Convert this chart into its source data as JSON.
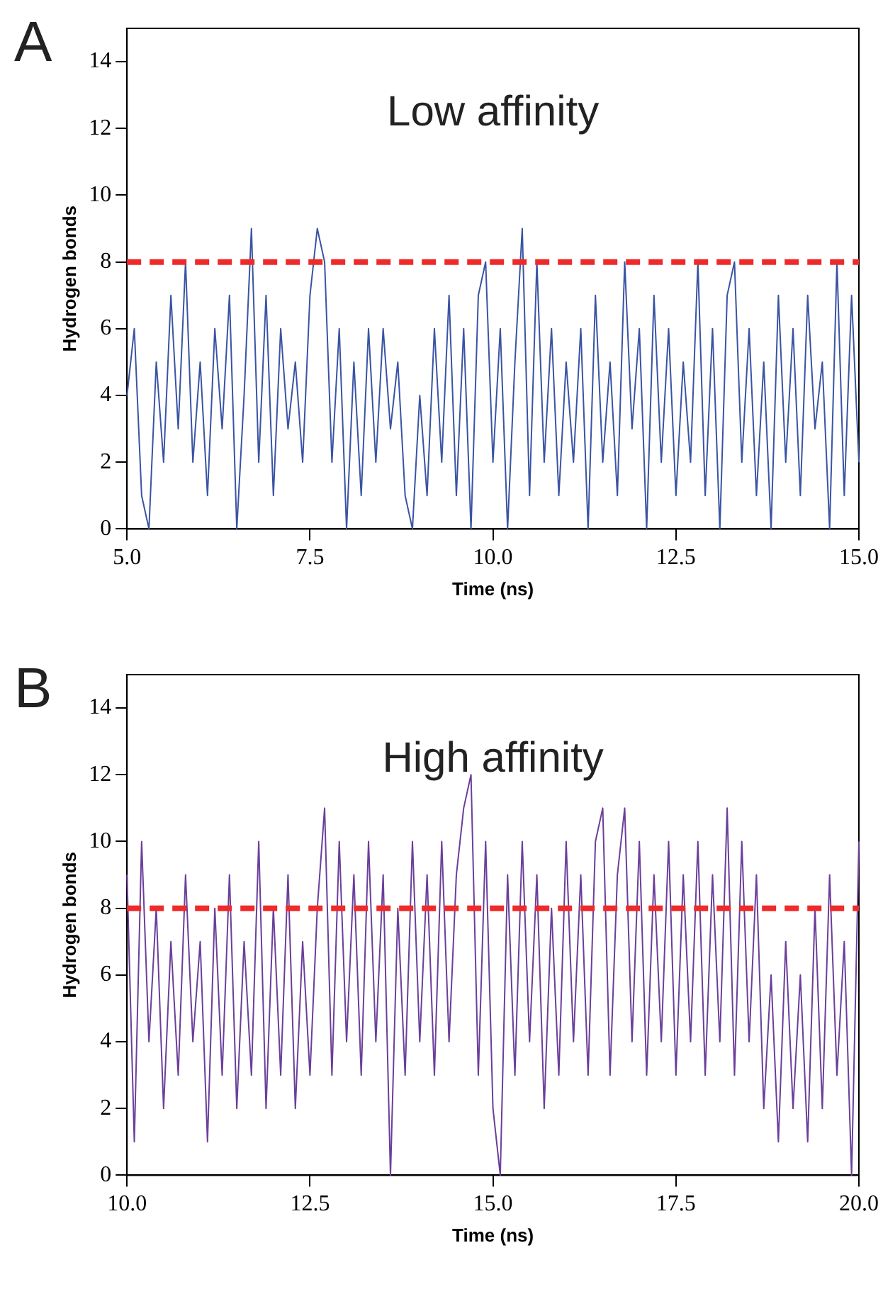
{
  "chart_data": [
    {
      "type": "line",
      "title": "Low affinity",
      "xlabel": "Time (ns)",
      "ylabel": "Hydrogen bonds",
      "annotations": [
        "A"
      ],
      "x": [
        5.0,
        5.1,
        5.2,
        5.3,
        5.4,
        5.5,
        5.6,
        5.7,
        5.8,
        5.9,
        6.0,
        6.1,
        6.2,
        6.3,
        6.4,
        6.5,
        6.6,
        6.7,
        6.8,
        6.9,
        7.0,
        7.1,
        7.2,
        7.3,
        7.4,
        7.5,
        7.6,
        7.7,
        7.8,
        7.9,
        8.0,
        8.1,
        8.2,
        8.3,
        8.4,
        8.5,
        8.6,
        8.7,
        8.8,
        8.9,
        9.0,
        9.1,
        9.2,
        9.3,
        9.4,
        9.5,
        9.6,
        9.7,
        9.8,
        9.9,
        10.0,
        10.1,
        10.2,
        10.3,
        10.4,
        10.5,
        10.6,
        10.7,
        10.8,
        10.9,
        11.0,
        11.1,
        11.2,
        11.3,
        11.4,
        11.5,
        11.6,
        11.7,
        11.8,
        11.9,
        12.0,
        12.1,
        12.2,
        12.3,
        12.4,
        12.5,
        12.6,
        12.7,
        12.8,
        12.9,
        13.0,
        13.1,
        13.2,
        13.3,
        13.4,
        13.5,
        13.6,
        13.7,
        13.8,
        13.9,
        14.0,
        14.1,
        14.2,
        14.3,
        14.4,
        14.5,
        14.6,
        14.7,
        14.8,
        14.9,
        15.0
      ],
      "series": [
        {
          "color": "#3a54a4",
          "values": [
            4,
            6,
            1,
            0,
            5,
            2,
            7,
            3,
            8,
            2,
            5,
            1,
            6,
            3,
            7,
            0,
            4,
            9,
            2,
            7,
            1,
            6,
            3,
            5,
            2,
            7,
            9,
            8,
            2,
            6,
            0,
            5,
            1,
            6,
            2,
            6,
            3,
            5,
            1,
            0,
            4,
            1,
            6,
            2,
            7,
            1,
            6,
            0,
            7,
            8,
            2,
            6,
            0,
            5,
            9,
            1,
            8,
            2,
            6,
            1,
            5,
            2,
            6,
            0,
            7,
            2,
            5,
            1,
            8,
            3,
            6,
            0,
            7,
            2,
            6,
            1,
            5,
            2,
            8,
            1,
            6,
            0,
            7,
            8,
            2,
            6,
            1,
            5,
            0,
            7,
            2,
            6,
            1,
            7,
            3,
            5,
            0,
            8,
            1,
            7,
            2
          ]
        }
      ],
      "xlim": [
        5,
        15
      ],
      "xticks": [
        {
          "value": 5,
          "label": "5.0"
        },
        7.5,
        {
          "value": 10,
          "label": "10.0"
        },
        12.5,
        {
          "value": 15,
          "label": "15.0"
        }
      ],
      "ylim": [
        0,
        15
      ],
      "yticks": [
        0,
        2,
        4,
        6,
        8,
        10,
        12,
        14
      ],
      "ref_lines": [
        {
          "axis": "y",
          "value": 8,
          "color": "#ee2a2a",
          "line_style": "dashed"
        }
      ],
      "grid": false,
      "legend": false
    },
    {
      "type": "line",
      "title": "High affinity",
      "xlabel": "Time (ns)",
      "ylabel": "Hydrogen bonds",
      "annotations": [
        "B"
      ],
      "x": [
        10.0,
        10.1,
        10.2,
        10.3,
        10.4,
        10.5,
        10.6,
        10.7,
        10.8,
        10.9,
        11.0,
        11.1,
        11.2,
        11.3,
        11.4,
        11.5,
        11.6,
        11.7,
        11.8,
        11.9,
        12.0,
        12.1,
        12.2,
        12.3,
        12.4,
        12.5,
        12.6,
        12.7,
        12.8,
        12.9,
        13.0,
        13.1,
        13.2,
        13.3,
        13.4,
        13.5,
        13.6,
        13.7,
        13.8,
        13.9,
        14.0,
        14.1,
        14.2,
        14.3,
        14.4,
        14.5,
        14.6,
        14.7,
        14.8,
        14.9,
        15.0,
        15.1,
        15.2,
        15.3,
        15.4,
        15.5,
        15.6,
        15.7,
        15.8,
        15.9,
        16.0,
        16.1,
        16.2,
        16.3,
        16.4,
        16.5,
        16.6,
        16.7,
        16.8,
        16.9,
        17.0,
        17.1,
        17.2,
        17.3,
        17.4,
        17.5,
        17.6,
        17.7,
        17.8,
        17.9,
        18.0,
        18.1,
        18.2,
        18.3,
        18.4,
        18.5,
        18.6,
        18.7,
        18.8,
        18.9,
        19.0,
        19.1,
        19.2,
        19.3,
        19.4,
        19.5,
        19.6,
        19.7,
        19.8,
        19.9,
        20.0
      ],
      "series": [
        {
          "color": "#6b3f9a",
          "values": [
            9,
            1,
            10,
            4,
            8,
            2,
            7,
            3,
            9,
            4,
            7,
            1,
            8,
            3,
            9,
            2,
            7,
            3,
            10,
            2,
            8,
            3,
            9,
            2,
            7,
            3,
            8,
            11,
            3,
            10,
            4,
            9,
            3,
            10,
            4,
            9,
            0,
            8,
            3,
            10,
            4,
            9,
            3,
            10,
            4,
            9,
            11,
            12,
            3,
            10,
            2,
            0,
            9,
            3,
            10,
            4,
            9,
            2,
            8,
            3,
            10,
            4,
            9,
            3,
            10,
            11,
            3,
            9,
            11,
            4,
            10,
            3,
            9,
            4,
            10,
            3,
            9,
            4,
            10,
            3,
            9,
            4,
            11,
            3,
            10,
            4,
            9,
            2,
            6,
            1,
            7,
            2,
            6,
            1,
            8,
            2,
            9,
            3,
            7,
            0,
            10
          ]
        }
      ],
      "xlim": [
        10,
        20
      ],
      "xticks": [
        {
          "value": 10,
          "label": "10.0"
        },
        12.5,
        {
          "value": 15,
          "label": "15.0"
        },
        17.5,
        {
          "value": 20,
          "label": "20.0"
        }
      ],
      "ylim": [
        0,
        15
      ],
      "yticks": [
        0,
        2,
        4,
        6,
        8,
        10,
        12,
        14
      ],
      "ref_lines": [
        {
          "axis": "y",
          "value": 8,
          "color": "#ee2a2a",
          "line_style": "dashed"
        }
      ],
      "grid": false,
      "legend": false
    }
  ]
}
